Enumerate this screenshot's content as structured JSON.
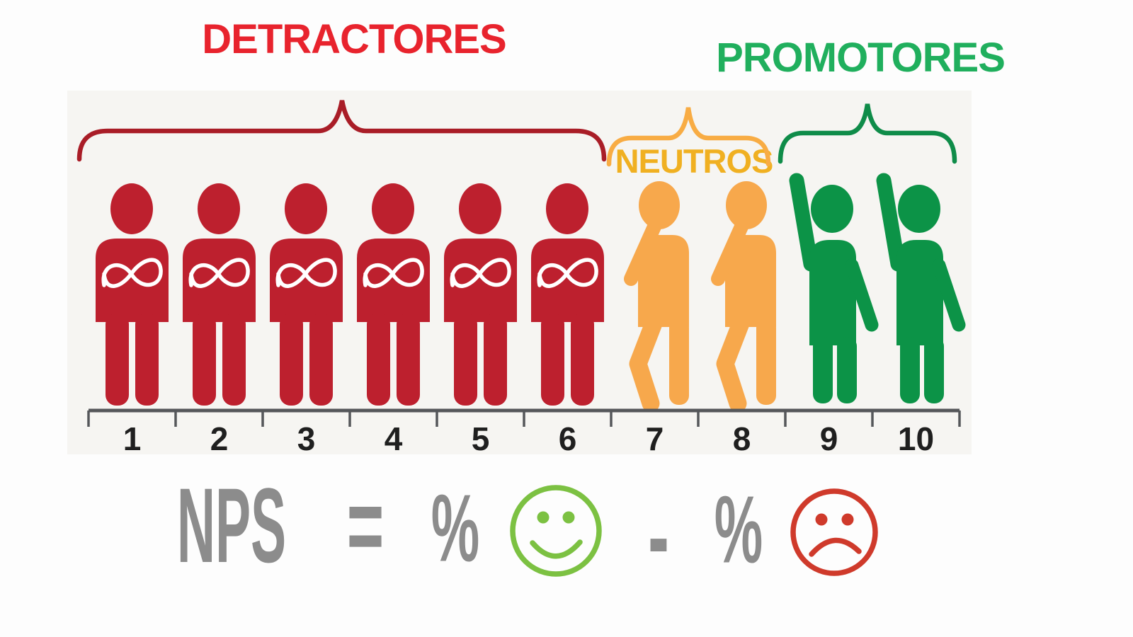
{
  "diagram": {
    "titles": {
      "detractors": "DETRACTORES",
      "neutrals": "NEUTROS",
      "promoters": "PROMOTORES"
    },
    "colors": {
      "detractor_figure": "#BD202E",
      "detractor_title": "#E8232D",
      "detractor_brace": "#A91D27",
      "neutral_figure": "#F7A84C",
      "neutral_title": "#F0B021",
      "neutral_brace": "#F8AC44",
      "promoter_figure": "#0C9347",
      "promoter_title": "#20AF5D",
      "promoter_brace": "#0F8C49",
      "axis": "#55575A",
      "scale_numbers": "#1F1F1F",
      "formula_text": "#8C8C8C",
      "smiley": "#7CC142",
      "frowny": "#CF3A2B"
    },
    "groups": [
      {
        "name": "detractores",
        "type": "detractor",
        "scores": [
          1,
          2,
          3,
          4,
          5,
          6
        ]
      },
      {
        "name": "neutros",
        "type": "neutral",
        "scores": [
          7,
          8
        ]
      },
      {
        "name": "promotores",
        "type": "promoter",
        "scores": [
          9,
          10
        ]
      }
    ],
    "scale": {
      "values": [
        "1",
        "2",
        "3",
        "4",
        "5",
        "6",
        "7",
        "8",
        "9",
        "10"
      ]
    },
    "formula": {
      "lhs": "NPS",
      "equals": "=",
      "pct_promoters": "%",
      "smiley_icon": "smiley-face",
      "minus": "-",
      "pct_detractors": "%",
      "frowny_icon": "frowny-face"
    }
  }
}
